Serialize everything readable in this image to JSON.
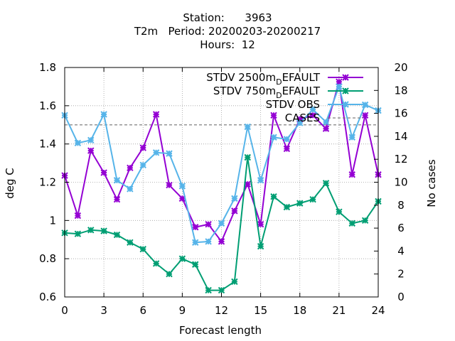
{
  "title_lines": [
    "Station:      3963",
    "T2m   Period: 20200203-20200217",
    "Hours:  12"
  ],
  "colors": {
    "stdv_2500m": "#9400d3",
    "stdv_750m": "#009e73",
    "stdv_obs": "#56b4e9",
    "cases": "#808080",
    "grid": "#a0a0a0"
  },
  "chart_data": {
    "type": "line",
    "xlabel": "Forecast length",
    "ylabel": "deg C",
    "y2label": "No cases",
    "xlim": [
      0,
      24
    ],
    "ylim": [
      0.6,
      1.8
    ],
    "y2lim": [
      0,
      20
    ],
    "grid": true,
    "legend_position": "top-right",
    "xticks": [
      "0",
      "3",
      "6",
      "9",
      "12",
      "15",
      "18",
      "21",
      "24"
    ],
    "yticks": [
      "0.6",
      "0.8",
      "1",
      "1.2",
      "1.4",
      "1.6",
      "1.8"
    ],
    "y2ticks": [
      "0",
      "2",
      "4",
      "6",
      "8",
      "10",
      "12",
      "14",
      "16",
      "18",
      "20"
    ],
    "x": [
      0,
      1,
      2,
      3,
      4,
      5,
      6,
      7,
      8,
      9,
      10,
      11,
      12,
      13,
      14,
      15,
      16,
      17,
      18,
      19,
      20,
      21,
      22,
      23,
      24
    ],
    "series": [
      {
        "name": "STDV 2500m_DEFAULT",
        "legend_main": "STDV 2500m",
        "legend_sub": "D",
        "legend_tail": "EFAULT",
        "color_key": "stdv_2500m",
        "axis": "y",
        "values": [
          1.235,
          1.025,
          1.365,
          1.25,
          1.11,
          1.275,
          1.38,
          1.555,
          1.185,
          1.115,
          0.965,
          0.98,
          0.89,
          1.05,
          1.19,
          0.98,
          1.55,
          1.375,
          1.53,
          1.55,
          1.48,
          1.725,
          1.24,
          1.55,
          1.24
        ]
      },
      {
        "name": "STDV 750m_DEFAULT",
        "legend_main": "STDV 750m",
        "legend_sub": "D",
        "legend_tail": "EFAULT",
        "color_key": "stdv_750m",
        "axis": "y",
        "values": [
          0.935,
          0.93,
          0.95,
          0.945,
          0.925,
          0.885,
          0.85,
          0.775,
          0.72,
          0.8,
          0.77,
          0.635,
          0.635,
          0.68,
          1.33,
          0.865,
          1.125,
          1.07,
          1.09,
          1.11,
          1.195,
          1.045,
          0.985,
          1.0,
          1.1
        ]
      },
      {
        "name": "STDV OBS",
        "legend_main": "STDV OBS",
        "legend_sub": "",
        "legend_tail": "",
        "color_key": "stdv_obs",
        "axis": "y",
        "values": [
          1.55,
          1.405,
          1.42,
          1.555,
          1.21,
          1.165,
          1.29,
          1.355,
          1.35,
          1.18,
          0.885,
          0.89,
          0.985,
          1.115,
          1.49,
          1.21,
          1.435,
          1.425,
          1.51,
          1.58,
          1.515,
          1.7,
          1.435,
          1.605,
          1.575
        ]
      },
      {
        "name": "CASES",
        "legend_main": "CASES",
        "legend_sub": "",
        "legend_tail": "",
        "color_key": "cases",
        "axis": "y2",
        "dashed": true,
        "values": [
          15,
          15,
          15,
          15,
          15,
          15,
          15,
          15,
          15,
          15,
          15,
          15,
          15,
          15,
          15,
          15,
          15,
          15,
          15,
          15,
          15,
          15,
          15,
          15,
          15
        ]
      }
    ]
  }
}
